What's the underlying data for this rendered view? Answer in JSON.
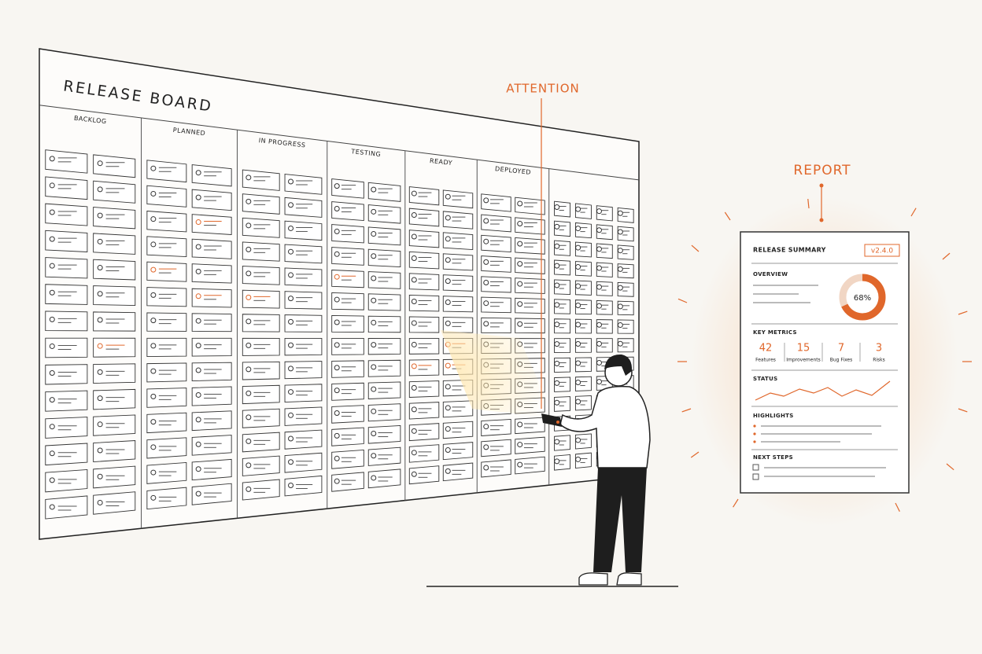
{
  "board": {
    "title": "RELEASE BOARD",
    "columns": [
      "BACKLOG",
      "PLANNED",
      "IN PROGRESS",
      "TESTING",
      "READY",
      "DEPLOYED"
    ]
  },
  "callouts": {
    "attention": "ATTENTION",
    "report": "REPORT"
  },
  "report": {
    "title": "RELEASE SUMMARY",
    "version": "v2.4.0",
    "overview": {
      "heading": "OVERVIEW",
      "progress": {
        "value": 68,
        "label": "68%"
      }
    },
    "key_metrics": {
      "heading": "KEY METRICS",
      "items": [
        {
          "value": 42,
          "label": "Features"
        },
        {
          "value": 15,
          "label": "Improvements"
        },
        {
          "value": 7,
          "label": "Bug Fixes"
        },
        {
          "value": 3,
          "label": "Risks"
        }
      ]
    },
    "status": "STATUS",
    "highlights": "HIGHLIGHTS",
    "next_steps": "NEXT STEPS"
  }
}
